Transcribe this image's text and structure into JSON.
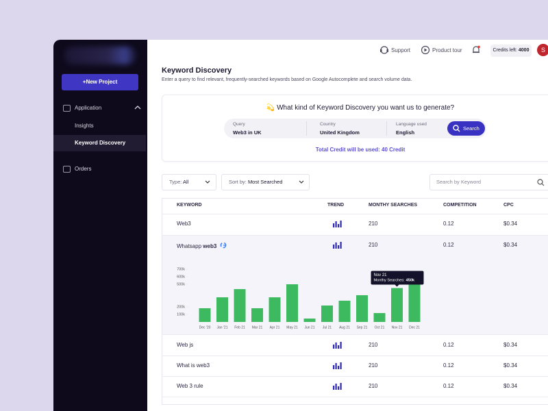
{
  "sidebar": {
    "new_project": "+New Project",
    "menu": [
      {
        "label": "Application"
      },
      {
        "label": "Insights"
      },
      {
        "label": "Keyword Discovery"
      },
      {
        "label": "Orders"
      }
    ]
  },
  "topbar": {
    "support": "Support",
    "product_tour": "Product tour",
    "credits_label": "Credits left:",
    "credits_value": "4000",
    "avatar": "S"
  },
  "header": {
    "title": "Keyword Discovery",
    "subtitle": "Enter a query to find relevant, frequently-searched keywords based on Google Autocomplete and search volume data."
  },
  "generator": {
    "prompt": "💫 What kind of Keyword Discovery you want us to generate?",
    "fields": [
      {
        "label": "Query",
        "value": "Web3 in UK"
      },
      {
        "label": "Country",
        "value": "United Kingdom"
      },
      {
        "label": "Language used",
        "value": "English"
      }
    ],
    "button": "Search",
    "credit_note": "Total Credit will be used: 40 Credit"
  },
  "filters": {
    "type_label": "Type:",
    "type_value": "All",
    "sort_label": "Sort by:",
    "sort_value": "Most Searched",
    "search_placeholder": "Search by Keyword"
  },
  "table": {
    "columns": [
      "KEYWORD",
      "TREND",
      "MONTHY SEARCHES",
      "COMPETITION",
      "CPC"
    ],
    "rows": [
      {
        "keyword": "Web3",
        "searches": "210",
        "competition": "0.12",
        "cpc": "$0.34"
      },
      {
        "keyword": "Whatsapp",
        "keyword_bold": "web3",
        "searches": "210",
        "competition": "0.12",
        "cpc": "$0.34"
      },
      {
        "keyword": "Web js",
        "searches": "210",
        "competition": "0.12",
        "cpc": "$0.34"
      },
      {
        "keyword": "What is web3",
        "searches": "210",
        "competition": "0.12",
        "cpc": "$0.34"
      },
      {
        "keyword": "Web 3 rule",
        "searches": "210",
        "competition": "0.12",
        "cpc": "$0.34"
      }
    ]
  },
  "chart_data": {
    "type": "bar",
    "categories": [
      "Dec '20",
      "Jan '21",
      "Feb 21",
      "Mar 21",
      "Apr 21",
      "May 21",
      "Jun 21",
      "Jul 21",
      "Aug 21",
      "Sep 21",
      "Oct 21",
      "Nov 21",
      "Dec 21"
    ],
    "values": [
      182000,
      327000,
      436000,
      182000,
      327000,
      500000,
      45000,
      218000,
      282000,
      355000,
      118000,
      450000,
      564000
    ],
    "color": "#3dba5f",
    "ylim": [
      0,
      700000
    ],
    "yticks": [
      {
        "value": 100000,
        "label": "100k"
      },
      {
        "value": 200000,
        "label": "200k"
      },
      {
        "value": 500000,
        "label": "500k"
      },
      {
        "value": 600000,
        "label": "600k"
      },
      {
        "value": 700000,
        "label": "700k"
      }
    ],
    "tooltip": {
      "title": "Nov 21",
      "label": "Monthy Searches:",
      "value_label": "450k"
    }
  }
}
